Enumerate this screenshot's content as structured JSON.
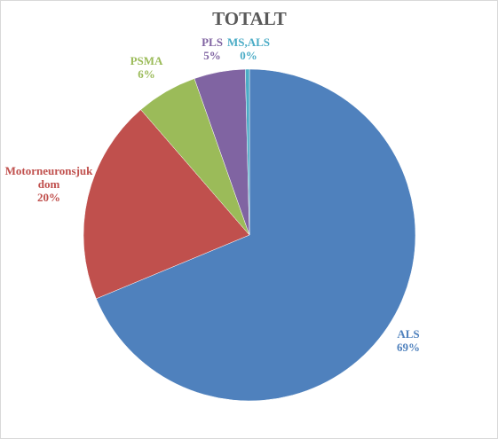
{
  "chart_data": {
    "type": "pie",
    "title": "TOTALT",
    "slices": [
      {
        "name": "ALS",
        "value": 69,
        "label_lines": [
          "ALS",
          "69%"
        ],
        "color": "#4f81bd",
        "label_color": "#4f81bd"
      },
      {
        "name": "Motorneuronsjukdom",
        "value": 20,
        "label_lines": [
          "Motorneuronsjuk",
          "dom",
          "20%"
        ],
        "color": "#c0504d",
        "label_color": "#c0504d"
      },
      {
        "name": "PSMA",
        "value": 6,
        "label_lines": [
          "PSMA",
          "6%"
        ],
        "color": "#9bbb59",
        "label_color": "#9bbb59"
      },
      {
        "name": "PLS",
        "value": 5,
        "label_lines": [
          "PLS",
          "5%"
        ],
        "color": "#8064a2",
        "label_color": "#8064a2"
      },
      {
        "name": "MS,ALS",
        "value": 0.4,
        "label_lines": [
          "MS,ALS",
          "0%"
        ],
        "color": "#4bacc6",
        "label_color": "#4bacc6"
      }
    ],
    "legend": "none",
    "data_labels": "outside"
  }
}
